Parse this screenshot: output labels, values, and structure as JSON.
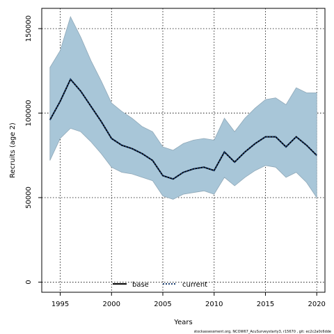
{
  "colors": {
    "band_fill": "#a8c6d8",
    "band_stroke": "#8fa8b8",
    "base_line": "#000000",
    "current_line": "#1b3f73"
  },
  "chart_data": {
    "type": "line",
    "xlabel": "Years",
    "ylabel": "Recruits (age 2)",
    "xlim": [
      1993.2,
      2020.8
    ],
    "ylim": [
      -6000,
      162000
    ],
    "grid": true,
    "grid_style": "dotted",
    "x_ticks": [
      1995,
      2000,
      2005,
      2010,
      2015,
      2020
    ],
    "y_ticks": [
      0,
      50000,
      100000,
      150000
    ],
    "x": [
      1994,
      1995,
      1996,
      1997,
      1998,
      1999,
      2000,
      2001,
      2002,
      2003,
      2004,
      2005,
      2006,
      2007,
      2008,
      2009,
      2010,
      2011,
      2012,
      2013,
      2014,
      2015,
      2016,
      2017,
      2018,
      2019,
      2020
    ],
    "interval": {
      "upper": [
        127000,
        137000,
        157000,
        145000,
        131000,
        119000,
        106000,
        101000,
        97000,
        92000,
        89000,
        80000,
        78000,
        82000,
        84000,
        85000,
        84000,
        97000,
        89000,
        97000,
        103000,
        108000,
        109000,
        105000,
        115000,
        112000,
        112000
      ],
      "lower": [
        72000,
        85000,
        91000,
        89000,
        83000,
        76000,
        68000,
        65000,
        64000,
        62000,
        60000,
        51000,
        49000,
        52000,
        53000,
        54000,
        52000,
        62000,
        57000,
        62000,
        66000,
        69000,
        68000,
        62000,
        65000,
        59000,
        50000
      ]
    },
    "series": [
      {
        "name": "base",
        "values": [
          96000,
          107000,
          120000,
          113000,
          104000,
          95000,
          85000,
          81000,
          79000,
          76000,
          72000,
          63000,
          61000,
          65000,
          67000,
          68000,
          66000,
          77000,
          71000,
          77000,
          82000,
          86000,
          86000,
          80000,
          86000,
          81000,
          75000
        ]
      },
      {
        "name": "current",
        "values": [
          96000,
          107000,
          120000,
          113000,
          104000,
          95000,
          85000,
          81000,
          79000,
          76000,
          72000,
          63000,
          61000,
          65000,
          67000,
          68000,
          66000,
          77000,
          71000,
          77000,
          82000,
          86000,
          86000,
          80000,
          86000,
          81000,
          75000
        ]
      }
    ],
    "legend": {
      "placement": "bottom-center",
      "items": [
        "base",
        "current"
      ]
    },
    "footnote": "stockassessment.org, NCOW67_AcuSurveystarty3, r15670 , git: ec2c2a0c6dde"
  }
}
